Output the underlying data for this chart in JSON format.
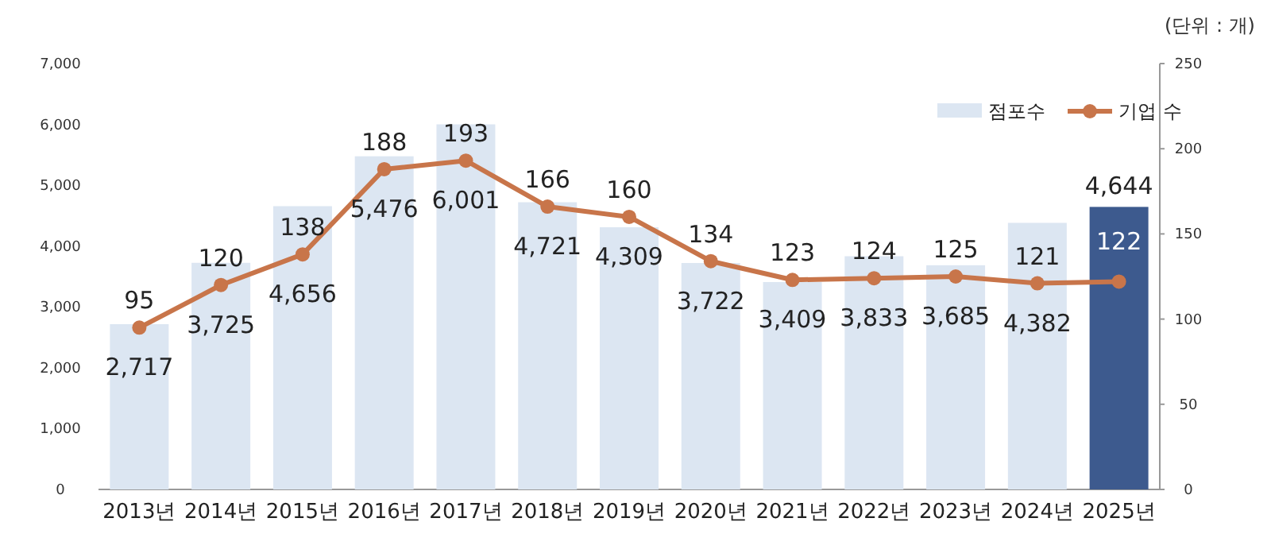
{
  "chart_data": {
    "type": "bar",
    "categories": [
      "2013년",
      "2014년",
      "2015년",
      "2016년",
      "2017년",
      "2018년",
      "2019년",
      "2020년",
      "2021년",
      "2022년",
      "2023년",
      "2024년",
      "2025년"
    ],
    "series": [
      {
        "name": "점포수",
        "colors": [
          "#dce6f2",
          "#dce6f2",
          "#dce6f2",
          "#dce6f2",
          "#dce6f2",
          "#dce6f2",
          "#dce6f2",
          "#dce6f2",
          "#dce6f2",
          "#dce6f2",
          "#dce6f2",
          "#dce6f2",
          "#3d5a8e"
        ],
        "values": [
          2717,
          3725,
          4656,
          5476,
          6001,
          4721,
          4309,
          3722,
          3409,
          3833,
          3685,
          4382,
          4644
        ],
        "value_labels": [
          "2,717",
          "3,725",
          "4,656",
          "5,476",
          "6,001",
          "4,721",
          "4,309",
          "3,722",
          "3,409",
          "3,833",
          "3,685",
          "4,382",
          "4,644"
        ]
      },
      {
        "name": "기업 수",
        "type": "line",
        "axis": "y2",
        "color": "#c8754a",
        "marker": "circle",
        "values": [
          95,
          120,
          138,
          188,
          193,
          166,
          160,
          134,
          123,
          124,
          125,
          121,
          122
        ],
        "value_labels": [
          "95",
          "120",
          "138",
          "188",
          "193",
          "166",
          "160",
          "134",
          "123",
          "124",
          "125",
          "121",
          "122"
        ]
      }
    ],
    "ylim": [
      0,
      7000
    ],
    "yticks": [
      0,
      {
        "value": 1000,
        "label": "1,000"
      },
      {
        "value": 2000,
        "label": "2,000"
      },
      {
        "value": 3000,
        "label": "3,000"
      },
      {
        "value": 4000,
        "label": "4,000"
      },
      {
        "value": 5000,
        "label": "5,000"
      },
      {
        "value": 6000,
        "label": "6,000"
      },
      {
        "value": 7000,
        "label": "7,000"
      }
    ],
    "y2lim": [
      0,
      250
    ],
    "y2ticks": [
      0,
      50,
      100,
      150,
      200,
      250
    ],
    "legend": "top right",
    "grid": false,
    "annotations": [
      "(단위 : 개)"
    ]
  }
}
